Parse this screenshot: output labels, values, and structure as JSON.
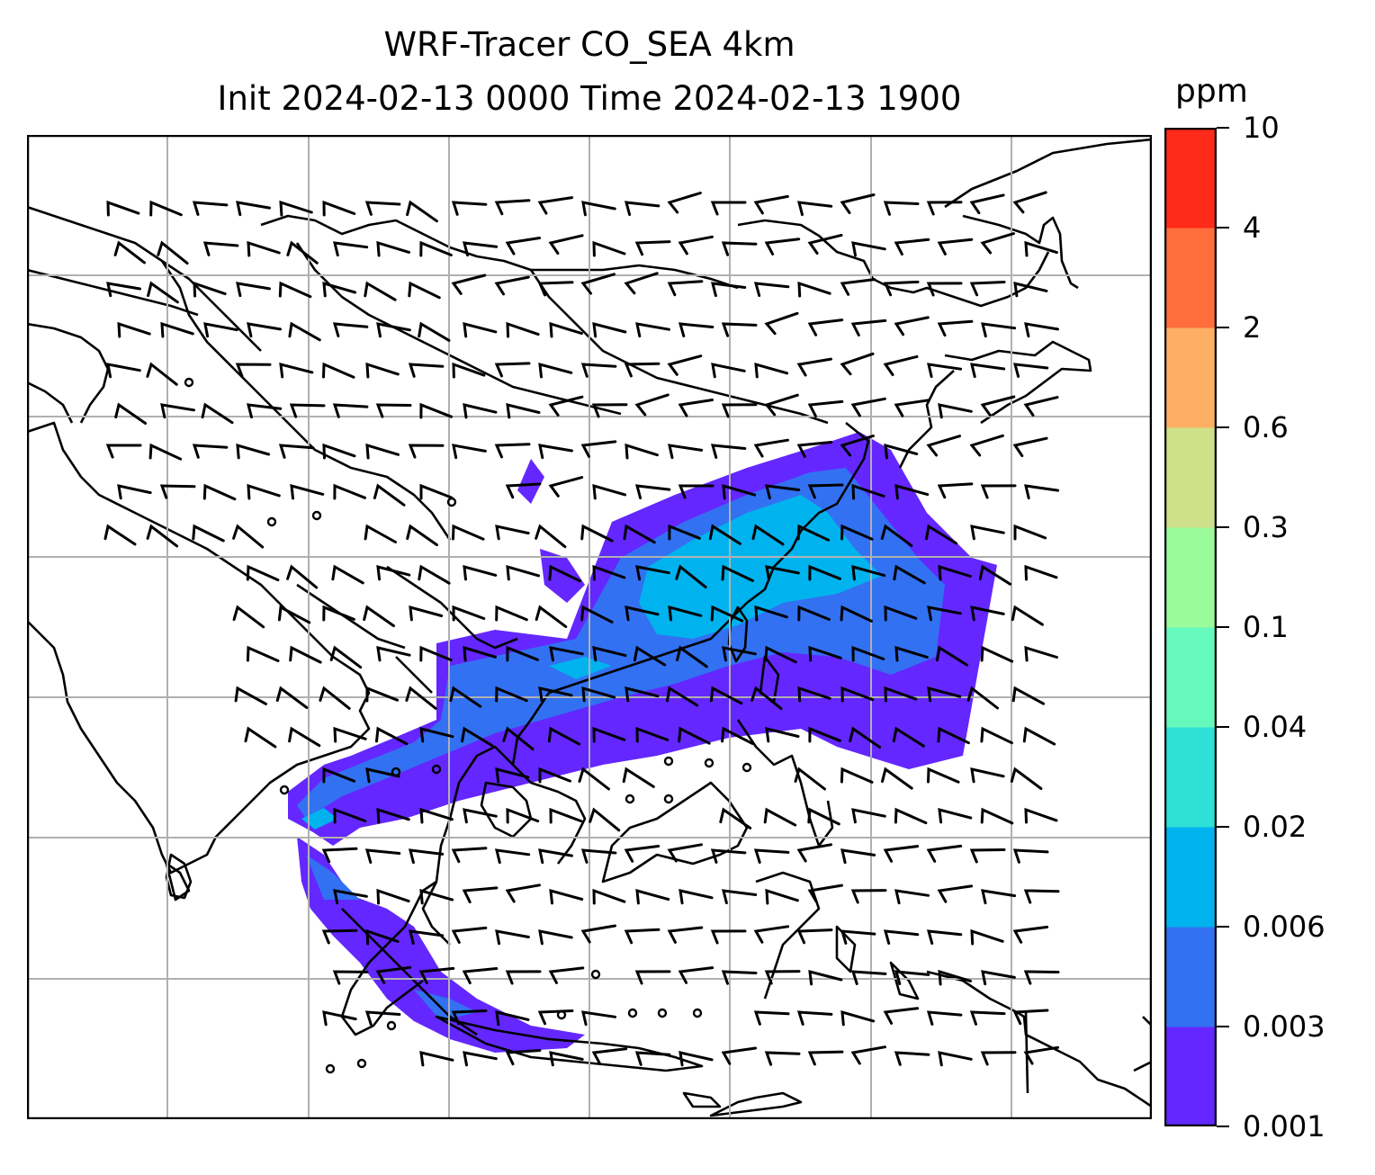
{
  "title": {
    "line1": "WRF-Tracer CO_SEA 4km",
    "line2": "Init 2024-02-13 0000 Time 2024-02-13 1900"
  },
  "map": {
    "projection": "Lambert conformal (regional map of East & Southeast Asia, South Asia)",
    "gridlines": true,
    "gridline_color": "#b0b0b0",
    "coastline_color": "#000000",
    "overlay": "wind barbs",
    "field": "CO tracer concentration (filled contours)",
    "plume_colors_seen": [
      "#6427ff",
      "#3271f2",
      "#00b3ee"
    ]
  },
  "colorbar": {
    "unit": "ppm",
    "ticks": [
      "0.001",
      "0.003",
      "0.006",
      "0.02",
      "0.04",
      "0.1",
      "0.3",
      "0.6",
      "2",
      "4",
      "10"
    ],
    "colors": [
      "#6427ff",
      "#3271f2",
      "#00b3ee",
      "#2ee0d6",
      "#66f9bd",
      "#9bfb9a",
      "#cfe08a",
      "#fdb064",
      "#ff6e3c",
      "#ff2a1a"
    ]
  }
}
